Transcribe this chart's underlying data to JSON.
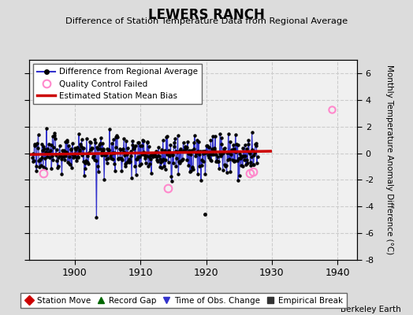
{
  "title": "LEWERS RANCH",
  "subtitle": "Difference of Station Temperature Data from Regional Average",
  "ylabel_right": "Monthly Temperature Anomaly Difference (°C)",
  "background_color": "#dcdcdc",
  "plot_bg_color": "#f0f0f0",
  "xlim": [
    1893,
    1943
  ],
  "ylim": [
    -8,
    7
  ],
  "yticks": [
    -8,
    -6,
    -4,
    -2,
    0,
    2,
    4,
    6
  ],
  "xticks": [
    1900,
    1910,
    1920,
    1930,
    1940
  ],
  "bias_color": "#cc0000",
  "series_color": "#3333cc",
  "qc_color": "#ff88cc",
  "berkeley_earth_text": "Berkeley Earth",
  "legend1_labels": [
    "Difference from Regional Average",
    "Quality Control Failed",
    "Estimated Station Mean Bias"
  ],
  "legend2_labels": [
    "Station Move",
    "Record Gap",
    "Time of Obs. Change",
    "Empirical Break"
  ],
  "legend2_colors": [
    "#cc0000",
    "#006600",
    "#3333cc",
    "#333333"
  ],
  "legend2_markers": [
    "D",
    "^",
    "v",
    "s"
  ]
}
